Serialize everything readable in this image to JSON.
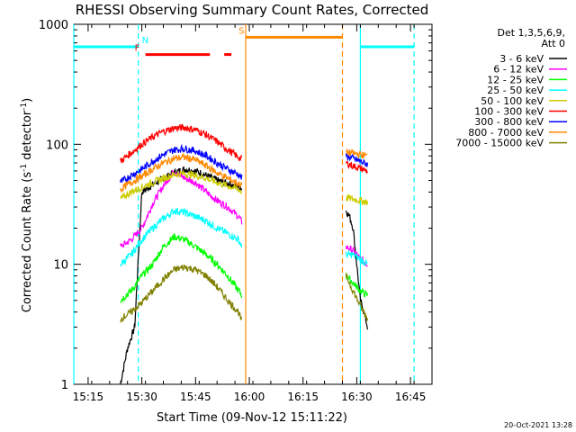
{
  "chart_data": {
    "type": "line",
    "title": "RHESSI Observing Summary Count Rates, Corrected",
    "xlabel": "Start Time (09-Nov-12 15:11:22)",
    "ylabel_main": "Corrected Count Rate (s",
    "ylabel_sup1": "-1",
    "ylabel_mid": " detector",
    "ylabel_sup2": "-1",
    "ylabel_end": ")",
    "yscale": "log",
    "xlim": [
      "15:11",
      "16:51"
    ],
    "ylim": [
      1,
      1000
    ],
    "x_ticks": [
      "15:15",
      "15:30",
      "15:45",
      "16:00",
      "16:15",
      "16:30",
      "16:45"
    ],
    "y_ticks": [
      "1",
      "10",
      "100",
      "1000"
    ],
    "legend_header": [
      "Det 1,3,5,6,9,",
      "Att 0"
    ],
    "legend_position": "right",
    "timestamp": "20-Oct-2021 13:28",
    "series": [
      {
        "name": "3 - 6 keV",
        "color": "#000000",
        "segments": [
          {
            "t": [
              "15:24",
              "15:26",
              "15:28",
              "15:30",
              "15:33",
              "15:36",
              "15:39",
              "15:42",
              "15:45",
              "15:48",
              "15:51",
              "15:54",
              "15:57",
              "15:58"
            ],
            "v": [
              1.0,
              2.0,
              3.0,
              40,
              46,
              52,
              58,
              62,
              60,
              55,
              50,
              47,
              44,
              43
            ]
          },
          {
            "t": [
              "16:27",
              "16:28",
              "16:29",
              "16:30",
              "16:31",
              "16:32",
              "16:33"
            ],
            "v": [
              28,
              25,
              20,
              10,
              5,
              4,
              3
            ]
          }
        ]
      },
      {
        "name": "6 - 12 keV",
        "color": "#ff00ff",
        "segments": [
          {
            "t": [
              "15:24",
              "15:27",
              "15:30",
              "15:33",
              "15:36",
              "15:39",
              "15:42",
              "15:45",
              "15:48",
              "15:51",
              "15:54",
              "15:57",
              "15:58"
            ],
            "v": [
              14,
              16,
              20,
              32,
              45,
              60,
              52,
              48,
              40,
              34,
              30,
              25,
              22
            ]
          },
          {
            "t": [
              "16:27",
              "16:29",
              "16:31",
              "16:33"
            ],
            "v": [
              14,
              13,
              11,
              10
            ]
          }
        ]
      },
      {
        "name": "12 - 25 keV",
        "color": "#00ff00",
        "segments": [
          {
            "t": [
              "15:24",
              "15:27",
              "15:30",
              "15:33",
              "15:36",
              "15:39",
              "15:42",
              "15:45",
              "15:48",
              "15:51",
              "15:54",
              "15:57",
              "15:58"
            ],
            "v": [
              5,
              6,
              8,
              10,
              14,
              17,
              16,
              14,
              12,
              10,
              8,
              6,
              5.5
            ]
          },
          {
            "t": [
              "16:27",
              "16:29",
              "16:31",
              "16:33"
            ],
            "v": [
              8,
              7,
              6,
              5.5
            ]
          }
        ]
      },
      {
        "name": "25 - 50 keV",
        "color": "#00ffff",
        "segments": [
          {
            "t": [
              "15:24",
              "15:27",
              "15:30",
              "15:33",
              "15:36",
              "15:39",
              "15:42",
              "15:45",
              "15:48",
              "15:51",
              "15:54",
              "15:57",
              "15:58"
            ],
            "v": [
              10,
              12,
              16,
              20,
              24,
              28,
              27,
              25,
              23,
              20,
              18,
              16,
              14
            ]
          },
          {
            "t": [
              "16:27",
              "16:29",
              "16:31",
              "16:33"
            ],
            "v": [
              12,
              12,
              11,
              10
            ]
          }
        ]
      },
      {
        "name": "50 - 100 keV",
        "color": "#cccc00",
        "segments": [
          {
            "t": [
              "15:24",
              "15:27",
              "15:30",
              "15:33",
              "15:36",
              "15:39",
              "15:42",
              "15:45",
              "15:48",
              "15:51",
              "15:54",
              "15:57",
              "15:58"
            ],
            "v": [
              35,
              40,
              44,
              48,
              52,
              56,
              57,
              55,
              52,
              48,
              45,
              42,
              40
            ]
          },
          {
            "t": [
              "16:27",
              "16:29",
              "16:31",
              "16:33"
            ],
            "v": [
              36,
              35,
              34,
              33
            ]
          }
        ]
      },
      {
        "name": "100 - 300 keV",
        "color": "#ff0000",
        "segments": [
          {
            "t": [
              "15:24",
              "15:27",
              "15:30",
              "15:33",
              "15:36",
              "15:39",
              "15:42",
              "15:45",
              "15:48",
              "15:51",
              "15:54",
              "15:57",
              "15:58"
            ],
            "v": [
              72,
              85,
              100,
              115,
              128,
              136,
              138,
              132,
              120,
              105,
              90,
              78,
              74
            ]
          },
          {
            "t": [
              "16:27",
              "16:29",
              "16:31",
              "16:33"
            ],
            "v": [
              70,
              66,
              63,
              60
            ]
          }
        ]
      },
      {
        "name": "300 - 800 keV",
        "color": "#0000ff",
        "segments": [
          {
            "t": [
              "15:24",
              "15:27",
              "15:30",
              "15:33",
              "15:36",
              "15:39",
              "15:42",
              "15:45",
              "15:48",
              "15:51",
              "15:54",
              "15:57",
              "15:58"
            ],
            "v": [
              48,
              55,
              62,
              72,
              82,
              90,
              92,
              88,
              80,
              70,
              62,
              56,
              52
            ]
          },
          {
            "t": [
              "16:27",
              "16:29",
              "16:31",
              "16:33"
            ],
            "v": [
              80,
              76,
              72,
              68
            ]
          }
        ]
      },
      {
        "name": "800 - 7000 keV",
        "color": "#ff8800",
        "segments": [
          {
            "t": [
              "15:24",
              "15:27",
              "15:30",
              "15:33",
              "15:36",
              "15:39",
              "15:42",
              "15:45",
              "15:48",
              "15:51",
              "15:54",
              "15:57",
              "15:58"
            ],
            "v": [
              42,
              48,
              54,
              62,
              70,
              76,
              78,
              74,
              66,
              58,
              52,
              47,
              45
            ]
          },
          {
            "t": [
              "16:27",
              "16:29",
              "16:31",
              "16:33"
            ],
            "v": [
              86,
              84,
              82,
              80
            ]
          }
        ]
      },
      {
        "name": "7000 - 15000 keV",
        "color": "#808000",
        "segments": [
          {
            "t": [
              "15:24",
              "15:27",
              "15:30",
              "15:33",
              "15:36",
              "15:39",
              "15:42",
              "15:45",
              "15:48",
              "15:51",
              "15:54",
              "15:57",
              "15:58"
            ],
            "v": [
              3.5,
              4,
              4.8,
              6,
              7.5,
              9,
              9.5,
              9,
              8,
              6.5,
              5,
              4,
              3.2
            ]
          },
          {
            "t": [
              "16:27",
              "16:29",
              "16:31",
              "16:33"
            ],
            "v": [
              8,
              6,
              4.5,
              3.5
            ]
          }
        ]
      }
    ],
    "night_intervals": {
      "color": "#00ffff",
      "level": 650,
      "segments": [
        [
          "15:11",
          "15:29"
        ],
        [
          "16:31",
          "16:46"
        ]
      ],
      "boundaries_solid": [
        "15:11",
        "16:31"
      ],
      "boundaries_dashed": [
        "15:29",
        "16:46"
      ],
      "label": "N",
      "label_time": "15:30"
    },
    "saa_intervals": {
      "color": "#ff8800",
      "level": 780,
      "segments": [
        [
          "15:59",
          "16:26"
        ]
      ],
      "boundaries_solid": [
        "15:59"
      ],
      "boundaries_dashed": [
        "16:26"
      ],
      "label": "S",
      "label_time": "15:57"
    },
    "flare_intervals": {
      "color": "#ff0000",
      "level": 560,
      "segments": [
        [
          "15:31",
          "15:49"
        ],
        [
          "15:53",
          "15:55"
        ]
      ],
      "label": "F",
      "label_time": "15:28"
    }
  }
}
